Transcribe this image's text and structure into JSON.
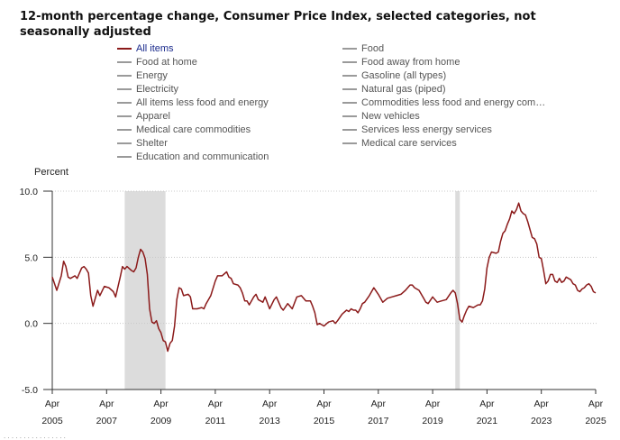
{
  "title": "12-month percentage change, Consumer Price Index, selected categories, not seasonally adjusted",
  "legend": {
    "left": [
      "All items",
      "Food at home",
      "Energy",
      "Electricity",
      "All items less food and energy",
      "Apparel",
      "Medical care commodities",
      "Shelter",
      "Education and communication"
    ],
    "right": [
      "Food",
      "Food away from home",
      "Gasoline (all types)",
      "Natural gas (piped)",
      "Commodities less food and energy com…",
      "New vehicles",
      "Services less energy services",
      "Medical care services"
    ]
  },
  "colors": {
    "series": "#8b1a1a",
    "recession": "#dcdcdc",
    "legend_active_text": "#1a2a8c",
    "legend_inactive_swatch": "#9a9a9a"
  },
  "chart_data": {
    "type": "line",
    "ylabel": "Percent",
    "ylim": [
      -5.0,
      10.0
    ],
    "yticks": [
      "10.0",
      "5.0",
      "0.0",
      "-5.0"
    ],
    "grid": "horizontal dotted",
    "xtick_months": [
      "Apr",
      "Apr",
      "Apr",
      "Apr",
      "Apr",
      "Apr",
      "Apr",
      "Apr",
      "Apr",
      "Apr",
      "Apr"
    ],
    "xtick_years": [
      "2005",
      "2007",
      "2009",
      "2011",
      "2013",
      "2015",
      "2017",
      "2019",
      "2021",
      "2023",
      "2025"
    ],
    "recessions": [
      [
        "2007-12",
        "2009-06"
      ],
      [
        "2020-02",
        "2020-04"
      ]
    ],
    "series": [
      {
        "name": "All items",
        "points": [
          [
            "2005-04",
            3.5
          ],
          [
            "2005-06",
            2.5
          ],
          [
            "2005-08",
            3.6
          ],
          [
            "2005-09",
            4.7
          ],
          [
            "2005-10",
            4.3
          ],
          [
            "2005-11",
            3.5
          ],
          [
            "2005-12",
            3.4
          ],
          [
            "2006-02",
            3.6
          ],
          [
            "2006-03",
            3.4
          ],
          [
            "2006-05",
            4.2
          ],
          [
            "2006-06",
            4.3
          ],
          [
            "2006-07",
            4.1
          ],
          [
            "2006-08",
            3.8
          ],
          [
            "2006-09",
            2.1
          ],
          [
            "2006-10",
            1.3
          ],
          [
            "2006-12",
            2.5
          ],
          [
            "2007-01",
            2.1
          ],
          [
            "2007-03",
            2.8
          ],
          [
            "2007-05",
            2.7
          ],
          [
            "2007-07",
            2.4
          ],
          [
            "2007-08",
            2.0
          ],
          [
            "2007-10",
            3.5
          ],
          [
            "2007-11",
            4.3
          ],
          [
            "2007-12",
            4.1
          ],
          [
            "2008-01",
            4.3
          ],
          [
            "2008-03",
            4.0
          ],
          [
            "2008-04",
            3.9
          ],
          [
            "2008-05",
            4.2
          ],
          [
            "2008-06",
            5.0
          ],
          [
            "2008-07",
            5.6
          ],
          [
            "2008-08",
            5.4
          ],
          [
            "2008-09",
            4.9
          ],
          [
            "2008-10",
            3.7
          ],
          [
            "2008-11",
            1.1
          ],
          [
            "2008-12",
            0.1
          ],
          [
            "2009-01",
            0.0
          ],
          [
            "2009-02",
            0.2
          ],
          [
            "2009-03",
            -0.4
          ],
          [
            "2009-04",
            -0.7
          ],
          [
            "2009-05",
            -1.3
          ],
          [
            "2009-06",
            -1.4
          ],
          [
            "2009-07",
            -2.1
          ],
          [
            "2009-08",
            -1.5
          ],
          [
            "2009-09",
            -1.3
          ],
          [
            "2009-10",
            -0.2
          ],
          [
            "2009-11",
            1.8
          ],
          [
            "2009-12",
            2.7
          ],
          [
            "2010-01",
            2.6
          ],
          [
            "2010-02",
            2.1
          ],
          [
            "2010-04",
            2.2
          ],
          [
            "2010-05",
            2.0
          ],
          [
            "2010-06",
            1.1
          ],
          [
            "2010-08",
            1.1
          ],
          [
            "2010-10",
            1.2
          ],
          [
            "2010-11",
            1.1
          ],
          [
            "2010-12",
            1.5
          ],
          [
            "2011-02",
            2.1
          ],
          [
            "2011-04",
            3.2
          ],
          [
            "2011-05",
            3.6
          ],
          [
            "2011-07",
            3.6
          ],
          [
            "2011-09",
            3.9
          ],
          [
            "2011-10",
            3.5
          ],
          [
            "2011-11",
            3.4
          ],
          [
            "2011-12",
            3.0
          ],
          [
            "2012-02",
            2.9
          ],
          [
            "2012-03",
            2.7
          ],
          [
            "2012-04",
            2.3
          ],
          [
            "2012-05",
            1.7
          ],
          [
            "2012-06",
            1.7
          ],
          [
            "2012-07",
            1.4
          ],
          [
            "2012-09",
            2.0
          ],
          [
            "2012-10",
            2.2
          ],
          [
            "2012-11",
            1.8
          ],
          [
            "2013-01",
            1.6
          ],
          [
            "2013-02",
            2.0
          ],
          [
            "2013-04",
            1.1
          ],
          [
            "2013-06",
            1.8
          ],
          [
            "2013-07",
            2.0
          ],
          [
            "2013-09",
            1.2
          ],
          [
            "2013-10",
            1.0
          ],
          [
            "2013-12",
            1.5
          ],
          [
            "2014-02",
            1.1
          ],
          [
            "2014-04",
            2.0
          ],
          [
            "2014-06",
            2.1
          ],
          [
            "2014-08",
            1.7
          ],
          [
            "2014-10",
            1.7
          ],
          [
            "2014-11",
            1.3
          ],
          [
            "2014-12",
            0.8
          ],
          [
            "2015-01",
            -0.1
          ],
          [
            "2015-02",
            0.0
          ],
          [
            "2015-03",
            -0.1
          ],
          [
            "2015-04",
            -0.2
          ],
          [
            "2015-06",
            0.1
          ],
          [
            "2015-08",
            0.2
          ],
          [
            "2015-09",
            0.0
          ],
          [
            "2015-10",
            0.2
          ],
          [
            "2015-12",
            0.7
          ],
          [
            "2016-02",
            1.0
          ],
          [
            "2016-03",
            0.9
          ],
          [
            "2016-04",
            1.1
          ],
          [
            "2016-05",
            1.0
          ],
          [
            "2016-06",
            1.0
          ],
          [
            "2016-07",
            0.8
          ],
          [
            "2016-08",
            1.1
          ],
          [
            "2016-09",
            1.5
          ],
          [
            "2016-10",
            1.6
          ],
          [
            "2016-12",
            2.1
          ],
          [
            "2017-02",
            2.7
          ],
          [
            "2017-04",
            2.2
          ],
          [
            "2017-06",
            1.6
          ],
          [
            "2017-08",
            1.9
          ],
          [
            "2017-10",
            2.0
          ],
          [
            "2017-12",
            2.1
          ],
          [
            "2018-02",
            2.2
          ],
          [
            "2018-04",
            2.5
          ],
          [
            "2018-06",
            2.9
          ],
          [
            "2018-07",
            2.9
          ],
          [
            "2018-08",
            2.7
          ],
          [
            "2018-10",
            2.5
          ],
          [
            "2018-12",
            1.9
          ],
          [
            "2019-01",
            1.6
          ],
          [
            "2019-02",
            1.5
          ],
          [
            "2019-04",
            2.0
          ],
          [
            "2019-06",
            1.6
          ],
          [
            "2019-08",
            1.7
          ],
          [
            "2019-10",
            1.8
          ],
          [
            "2019-12",
            2.3
          ],
          [
            "2020-01",
            2.5
          ],
          [
            "2020-02",
            2.3
          ],
          [
            "2020-03",
            1.5
          ],
          [
            "2020-04",
            0.3
          ],
          [
            "2020-05",
            0.1
          ],
          [
            "2020-06",
            0.6
          ],
          [
            "2020-07",
            1.0
          ],
          [
            "2020-08",
            1.3
          ],
          [
            "2020-10",
            1.2
          ],
          [
            "2020-12",
            1.4
          ],
          [
            "2021-01",
            1.4
          ],
          [
            "2021-02",
            1.7
          ],
          [
            "2021-03",
            2.6
          ],
          [
            "2021-04",
            4.2
          ],
          [
            "2021-05",
            5.0
          ],
          [
            "2021-06",
            5.4
          ],
          [
            "2021-08",
            5.3
          ],
          [
            "2021-09",
            5.4
          ],
          [
            "2021-10",
            6.2
          ],
          [
            "2021-11",
            6.8
          ],
          [
            "2021-12",
            7.0
          ],
          [
            "2022-01",
            7.5
          ],
          [
            "2022-02",
            7.9
          ],
          [
            "2022-03",
            8.5
          ],
          [
            "2022-04",
            8.3
          ],
          [
            "2022-05",
            8.6
          ],
          [
            "2022-06",
            9.1
          ],
          [
            "2022-07",
            8.5
          ],
          [
            "2022-08",
            8.3
          ],
          [
            "2022-09",
            8.2
          ],
          [
            "2022-10",
            7.7
          ],
          [
            "2022-11",
            7.1
          ],
          [
            "2022-12",
            6.5
          ],
          [
            "2023-01",
            6.4
          ],
          [
            "2023-02",
            6.0
          ],
          [
            "2023-03",
            5.0
          ],
          [
            "2023-04",
            4.9
          ],
          [
            "2023-05",
            4.0
          ],
          [
            "2023-06",
            3.0
          ],
          [
            "2023-07",
            3.2
          ],
          [
            "2023-08",
            3.7
          ],
          [
            "2023-09",
            3.7
          ],
          [
            "2023-10",
            3.2
          ],
          [
            "2023-11",
            3.1
          ],
          [
            "2023-12",
            3.4
          ],
          [
            "2024-01",
            3.1
          ],
          [
            "2024-02",
            3.2
          ],
          [
            "2024-03",
            3.5
          ],
          [
            "2024-04",
            3.4
          ],
          [
            "2024-05",
            3.3
          ],
          [
            "2024-06",
            3.0
          ],
          [
            "2024-07",
            2.9
          ],
          [
            "2024-08",
            2.5
          ],
          [
            "2024-09",
            2.4
          ],
          [
            "2024-10",
            2.6
          ],
          [
            "2024-11",
            2.7
          ],
          [
            "2024-12",
            2.9
          ],
          [
            "2025-01",
            3.0
          ],
          [
            "2025-02",
            2.8
          ],
          [
            "2025-03",
            2.4
          ],
          [
            "2025-04",
            2.3
          ]
        ]
      }
    ]
  }
}
